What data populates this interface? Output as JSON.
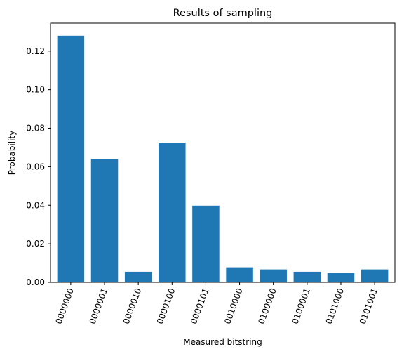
{
  "chart_data": {
    "type": "bar",
    "title": "Results of sampling",
    "xlabel": "Measured bitstring",
    "ylabel": "Probability",
    "categories": [
      "0000000",
      "0000001",
      "0000010",
      "0000100",
      "0000101",
      "0010000",
      "0100000",
      "0100001",
      "0101000",
      "0101001"
    ],
    "values": [
      0.128,
      0.064,
      0.0055,
      0.0725,
      0.0398,
      0.0078,
      0.0067,
      0.0055,
      0.0049,
      0.0067
    ],
    "ylim": [
      0,
      0.1345
    ],
    "yticks": [
      0.0,
      0.02,
      0.04,
      0.06,
      0.08,
      0.1,
      0.12
    ],
    "ytick_labels": [
      "0.00",
      "0.02",
      "0.04",
      "0.06",
      "0.08",
      "0.10",
      "0.12"
    ],
    "bar_color": "#1f77b4",
    "grid": false,
    "legend": "none",
    "xtick_rotation": "70deg"
  }
}
